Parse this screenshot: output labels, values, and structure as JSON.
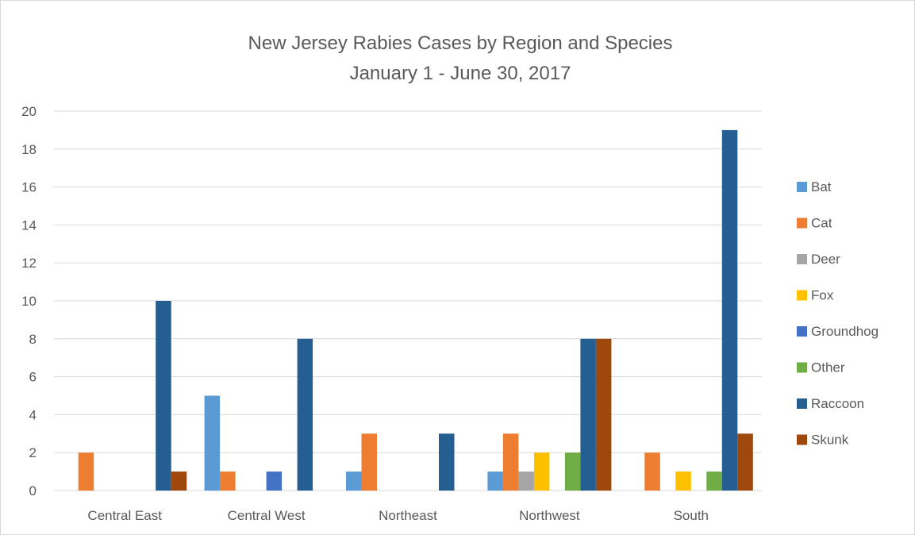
{
  "chart_data": {
    "type": "bar",
    "title": "New Jersey Rabies Cases by Region and Species",
    "subtitle": "January 1 - June 30, 2017",
    "xlabel": "",
    "ylabel": "",
    "ylim": [
      0,
      20
    ],
    "yticks": [
      "0",
      "2",
      "4",
      "6",
      "8",
      "10",
      "12",
      "14",
      "16",
      "18",
      "20"
    ],
    "grid": true,
    "legend_position": "right",
    "categories": [
      "Central East",
      "Central West",
      "Northeast",
      "Northwest",
      "South"
    ],
    "series": [
      {
        "name": "Bat",
        "color": "#5b9bd5",
        "values": [
          0,
          5,
          1,
          1,
          0
        ]
      },
      {
        "name": "Cat",
        "color": "#ed7d31",
        "values": [
          2,
          1,
          3,
          3,
          2
        ]
      },
      {
        "name": "Deer",
        "color": "#a5a5a5",
        "values": [
          0,
          0,
          0,
          1,
          0
        ]
      },
      {
        "name": "Fox",
        "color": "#ffc000",
        "values": [
          0,
          0,
          0,
          2,
          1
        ]
      },
      {
        "name": "Groundhog",
        "color": "#4472c4",
        "values": [
          0,
          1,
          0,
          0,
          0
        ]
      },
      {
        "name": "Other",
        "color": "#70ad47",
        "values": [
          0,
          0,
          0,
          2,
          1
        ]
      },
      {
        "name": "Raccoon",
        "color": "#255e91",
        "values": [
          10,
          8,
          3,
          8,
          19
        ]
      },
      {
        "name": "Skunk",
        "color": "#9e480e",
        "values": [
          1,
          0,
          0,
          8,
          3
        ]
      }
    ]
  }
}
